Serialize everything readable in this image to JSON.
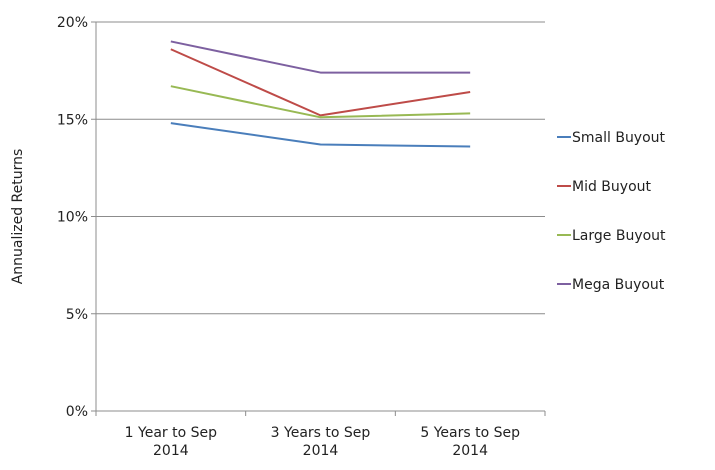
{
  "chart_data": {
    "type": "line",
    "title": "",
    "xlabel": "",
    "ylabel": "Annualized Returns",
    "categories": [
      [
        "1 Year to Sep",
        "2014"
      ],
      [
        "3 Years to Sep",
        "2014"
      ],
      [
        "5 Years to Sep",
        "2014"
      ]
    ],
    "y_ticks": [
      "0%",
      "5%",
      "10%",
      "15%",
      "20%"
    ],
    "ylim": [
      0,
      20
    ],
    "grid": true,
    "legend_position": "right",
    "series": [
      {
        "name": "Small Buyout",
        "color": "#4a7ebb",
        "values": [
          14.8,
          13.7,
          13.6
        ]
      },
      {
        "name": "Mid Buyout",
        "color": "#be4b48",
        "values": [
          18.6,
          15.2,
          16.4
        ]
      },
      {
        "name": "Large Buyout",
        "color": "#98b954",
        "values": [
          16.7,
          15.1,
          15.3
        ]
      },
      {
        "name": "Mega Buyout",
        "color": "#7d60a0",
        "values": [
          19.0,
          17.4,
          17.4
        ]
      }
    ]
  }
}
